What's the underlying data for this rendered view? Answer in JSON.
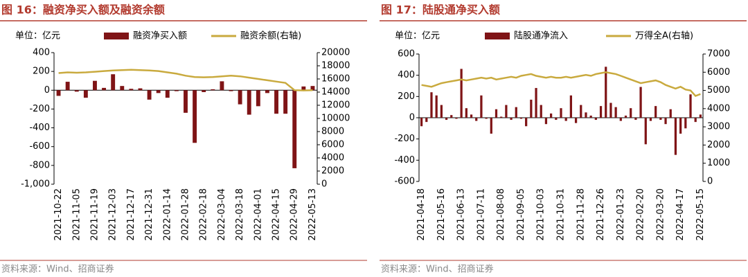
{
  "chart_data": [
    {
      "type": "bar",
      "title": "图 16：融资净买入额及融资余额",
      "unit": "单位：亿元",
      "source": "资料来源：Wind、招商证券",
      "categories": [
        "2021-10-22",
        null,
        "2021-11-05",
        null,
        "2021-11-19",
        null,
        "2021-12-03",
        null,
        "2021-12-17",
        null,
        "2021-12-31",
        null,
        "2022-01-14",
        null,
        "2022-01-28",
        null,
        "2022-02-18",
        null,
        "2022-03-04",
        null,
        "2022-03-18",
        null,
        "2022-04-01",
        null,
        "2022-04-15",
        null,
        "2022-04-29",
        null,
        "2022-05-13"
      ],
      "series": [
        {
          "name": "融资净买入额",
          "color": "#7f1416",
          "type": "bar",
          "values": [
            -60,
            90,
            -15,
            -80,
            100,
            25,
            170,
            45,
            15,
            20,
            -100,
            -30,
            -80,
            -10,
            -240,
            -560,
            -20,
            10,
            95,
            -10,
            -150,
            -260,
            -170,
            -30,
            -250,
            -250,
            -830,
            40,
            45
          ]
        },
        {
          "name": "融资余额(右轴)",
          "color": "#c9aa3e",
          "type": "line",
          "axis": "y2",
          "values": [
            16900,
            17000,
            16950,
            17000,
            17100,
            17200,
            17300,
            17350,
            17400,
            17350,
            17300,
            17200,
            17000,
            16800,
            16500,
            16300,
            16250,
            16300,
            16400,
            16500,
            16400,
            16200,
            16000,
            15800,
            15600,
            15400,
            14300,
            14250,
            14300
          ]
        }
      ],
      "ylim": [
        -1000,
        400
      ],
      "yticks": [
        400,
        200,
        0,
        -200,
        -400,
        -600,
        -800,
        {
          "value": -1000,
          "label": "-1,000"
        }
      ],
      "y2lim": [
        0,
        20000
      ],
      "y2ticks": [
        20000,
        18000,
        16000,
        14000,
        12000,
        10000,
        8000,
        6000,
        4000,
        2000,
        0
      ]
    },
    {
      "type": "bar",
      "title": "图 17：陆股通净买入额",
      "unit": "单位：亿元",
      "source": "资料来源：Wind、招商证券",
      "categories": [
        "2021-04-18",
        null,
        null,
        null,
        "2021-05-16",
        null,
        null,
        null,
        "2021-06-13",
        null,
        null,
        null,
        "2021-07-11",
        null,
        null,
        null,
        "2021-08-08",
        null,
        null,
        null,
        "2021-09-05",
        null,
        null,
        null,
        "2021-10-03",
        null,
        null,
        null,
        "2021-10-31",
        null,
        null,
        null,
        "2021-11-28",
        null,
        null,
        null,
        "2021-12-26",
        null,
        null,
        null,
        "2022-01-23",
        null,
        null,
        null,
        "2022-02-20",
        null,
        null,
        null,
        "2022-03-20",
        null,
        null,
        null,
        "2022-04-17",
        null,
        null,
        null,
        "2022-05-15"
      ],
      "series": [
        {
          "name": "陆股通净流入",
          "color": "#7f1416",
          "type": "bar",
          "values": [
            -80,
            -40,
            240,
            210,
            120,
            -20,
            25,
            -10,
            460,
            90,
            30,
            -30,
            210,
            -10,
            -150,
            80,
            10,
            120,
            -20,
            100,
            -10,
            -80,
            170,
            280,
            120,
            -60,
            40,
            -20,
            90,
            -30,
            210,
            -50,
            120,
            50,
            20,
            -20,
            110,
            480,
            140,
            100,
            -30,
            20,
            90,
            -20,
            290,
            -250,
            -30,
            110,
            -20,
            -60,
            80,
            -350,
            -150,
            -100,
            220,
            -40,
            30
          ]
        },
        {
          "name": "万得全A(右轴)",
          "color": "#c9aa3e",
          "type": "line",
          "axis": "y2",
          "values": [
            5300,
            5250,
            5200,
            5300,
            5400,
            5450,
            5500,
            5550,
            5600,
            5550,
            5600,
            5650,
            5700,
            5650,
            5700,
            5600,
            5650,
            5700,
            5750,
            5700,
            5800,
            5850,
            5900,
            5800,
            5750,
            5700,
            5750,
            5700,
            5700,
            5750,
            5700,
            5750,
            5800,
            5850,
            5800,
            5900,
            5950,
            6000,
            5950,
            5900,
            5800,
            5700,
            5600,
            5500,
            5400,
            5450,
            5500,
            5550,
            5450,
            5300,
            5200,
            5100,
            5200,
            5050,
            5000,
            4700,
            4800
          ]
        }
      ],
      "ylim": [
        -600,
        600
      ],
      "yticks": [
        600,
        400,
        200,
        0,
        -200,
        -400,
        -600
      ],
      "y2lim": [
        0,
        7000
      ],
      "y2ticks": [
        7000,
        6000,
        5000,
        4000,
        3000,
        2000,
        1000,
        0
      ]
    }
  ]
}
